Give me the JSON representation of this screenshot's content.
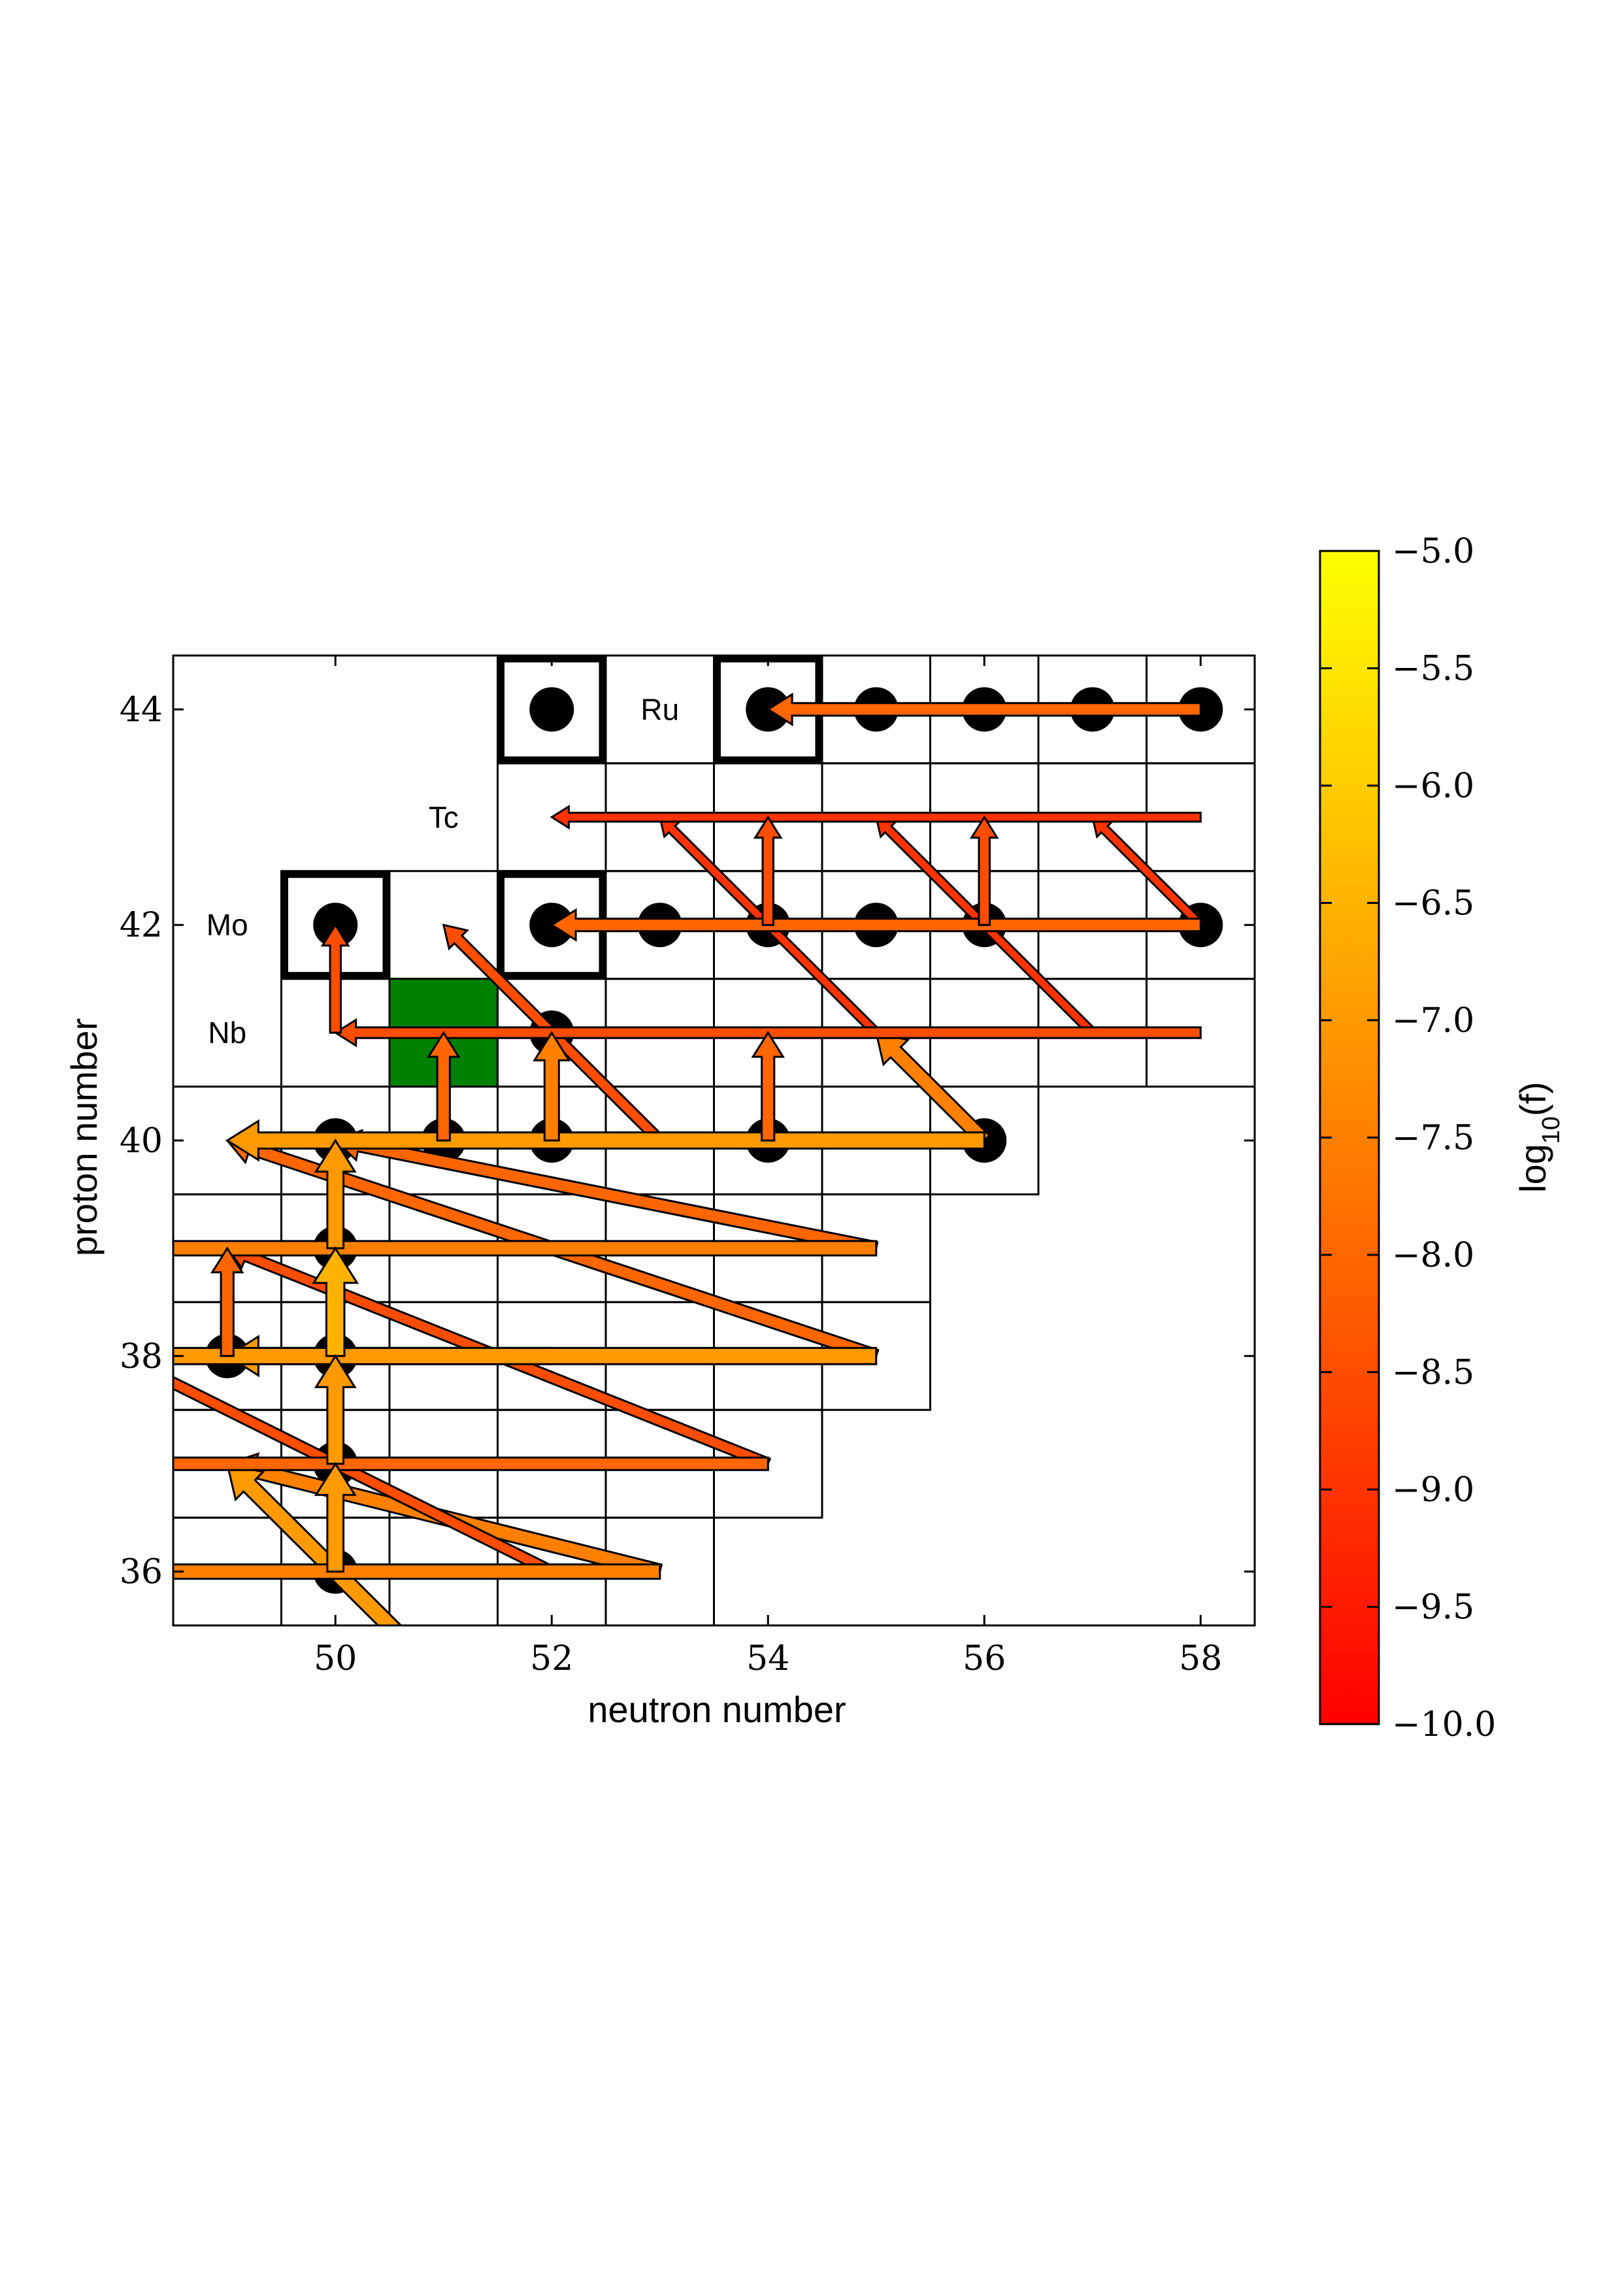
{
  "chart_data": {
    "type": "network",
    "xlabel": "neutron number",
    "ylabel": "proton number",
    "xlim": [
      48.5,
      58.5
    ],
    "ylim": [
      35.5,
      44.5
    ],
    "xticks": [
      "50",
      "52",
      "54",
      "56",
      "58"
    ],
    "yticks": [
      "36",
      "38",
      "40",
      "42",
      "44"
    ],
    "element_labels": [
      {
        "name": "Ru",
        "N": 53,
        "Z": 44
      },
      {
        "name": "Tc",
        "N": 51,
        "Z": 43
      },
      {
        "name": "Mo",
        "N": 49,
        "Z": 42
      },
      {
        "name": "Nb",
        "N": 49,
        "Z": 41
      }
    ],
    "colorbar": {
      "label": "log10(f)",
      "range": [
        -10.0,
        -5.0
      ],
      "ticks": [
        "−10.0",
        "−9.5",
        "−9.0",
        "−8.5",
        "−8.0",
        "−7.5",
        "−7.0",
        "−6.5",
        "−6.0",
        "−5.5",
        "−5.0"
      ],
      "colors": [
        "#ff0000",
        "#ff8000",
        "#ffff00"
      ]
    },
    "stable_nuclei": [
      [
        52,
        44
      ],
      [
        54,
        44
      ],
      [
        55,
        44
      ],
      [
        56,
        44
      ],
      [
        57,
        44
      ],
      [
        58,
        44
      ],
      [
        50,
        42
      ],
      [
        52,
        42
      ],
      [
        53,
        42
      ],
      [
        54,
        42
      ],
      [
        55,
        42
      ],
      [
        56,
        42
      ],
      [
        58,
        42
      ],
      [
        52,
        41
      ],
      [
        50,
        40
      ],
      [
        51,
        40
      ],
      [
        52,
        40
      ],
      [
        54,
        40
      ],
      [
        56,
        40
      ],
      [
        50,
        39
      ],
      [
        49,
        38
      ],
      [
        50,
        38
      ],
      [
        50,
        37
      ],
      [
        50,
        36
      ]
    ],
    "p_nuclei_boxes": [
      [
        52,
        44
      ],
      [
        54,
        44
      ],
      [
        50,
        42
      ],
      [
        52,
        42
      ]
    ],
    "seed_nucleus": [
      51,
      41
    ],
    "grid_rows": [
      {
        "Z": 44,
        "nmin": 52,
        "nmax": 58
      },
      {
        "Z": 43,
        "nmin": 52,
        "nmax": 58
      },
      {
        "Z": 42,
        "nmin": 50,
        "nmax": 58
      },
      {
        "Z": 41,
        "nmin": 50,
        "nmax": 58
      },
      {
        "Z": 40,
        "nmin": 48,
        "nmax": 56
      },
      {
        "Z": 39,
        "nmin": 48,
        "nmax": 55
      },
      {
        "Z": 38,
        "nmin": 48,
        "nmax": 55
      },
      {
        "Z": 37,
        "nmin": 48,
        "nmax": 54
      },
      {
        "Z": 36,
        "nmin": 48,
        "nmax": 53
      }
    ],
    "flows_neutron_capture_reverse": [
      {
        "from": [
          58,
          44
        ],
        "to": [
          54,
          44
        ],
        "log10f": -8.0
      },
      {
        "from": [
          58,
          43
        ],
        "to": [
          52,
          43
        ],
        "log10f": -9.0
      },
      {
        "from": [
          58,
          42
        ],
        "to": [
          52,
          42
        ],
        "log10f": -8.0
      },
      {
        "from": [
          58,
          41
        ],
        "to": [
          50,
          41
        ],
        "log10f": -8.5
      },
      {
        "from": [
          56,
          40
        ],
        "to": [
          49,
          40
        ],
        "log10f": -7.0
      },
      {
        "from": [
          55,
          39
        ],
        "to": [
          48,
          39
        ],
        "log10f": -7.5
      },
      {
        "from": [
          55,
          38
        ],
        "to": [
          48,
          38
        ],
        "log10f": -7.0
      },
      {
        "from": [
          54,
          37
        ],
        "to": [
          48,
          37
        ],
        "log10f": -8.0
      },
      {
        "from": [
          53,
          36
        ],
        "to": [
          48,
          36
        ],
        "log10f": -7.5
      }
    ],
    "flows_vertical": [
      {
        "from": [
          54,
          42
        ],
        "to": [
          54,
          43
        ],
        "log10f": -8.5
      },
      {
        "from": [
          56,
          42
        ],
        "to": [
          56,
          43
        ],
        "log10f": -8.5
      },
      {
        "from": [
          50,
          41
        ],
        "to": [
          50,
          42
        ],
        "log10f": -8.5
      },
      {
        "from": [
          52,
          40
        ],
        "to": [
          52,
          41
        ],
        "log10f": -7.5
      },
      {
        "from": [
          54,
          40
        ],
        "to": [
          54,
          41
        ],
        "log10f": -8.0
      },
      {
        "from": [
          51,
          40
        ],
        "to": [
          51,
          41
        ],
        "log10f": -8.0
      },
      {
        "from": [
          50,
          39
        ],
        "to": [
          50,
          40
        ],
        "log10f": -7.0
      },
      {
        "from": [
          49,
          38
        ],
        "to": [
          49,
          39
        ],
        "log10f": -8.0
      },
      {
        "from": [
          50,
          38
        ],
        "to": [
          50,
          39
        ],
        "log10f": -6.5
      },
      {
        "from": [
          50,
          37
        ],
        "to": [
          50,
          38
        ],
        "log10f": -7.0
      },
      {
        "from": [
          50,
          36
        ],
        "to": [
          50,
          37
        ],
        "log10f": -7.0
      }
    ],
    "flows_diagonal": [
      {
        "from": [
          55,
          41
        ],
        "to": [
          53,
          43
        ],
        "log10f": -9.0
      },
      {
        "from": [
          57,
          41
        ],
        "to": [
          55,
          43
        ],
        "log10f": -9.0
      },
      {
        "from": [
          58,
          42
        ],
        "to": [
          57,
          43
        ],
        "log10f": -9.0
      },
      {
        "from": [
          56,
          40
        ],
        "to": [
          55,
          41
        ],
        "log10f": -7.5
      },
      {
        "from": [
          55,
          39
        ],
        "to": [
          50,
          40
        ],
        "log10f": -8.0
      },
      {
        "from": [
          55,
          38
        ],
        "to": [
          49,
          40
        ],
        "log10f": -8.0
      },
      {
        "from": [
          54,
          37
        ],
        "to": [
          49,
          39
        ],
        "log10f": -8.5
      },
      {
        "from": [
          52,
          38
        ],
        "to": [
          49,
          38
        ],
        "log10f": -7.0
      },
      {
        "from": [
          53,
          36
        ],
        "to": [
          49,
          37
        ],
        "log10f": -7.5
      },
      {
        "from": [
          52,
          36
        ],
        "to": [
          48,
          38
        ],
        "log10f": -8.5
      },
      {
        "from": [
          51,
          35
        ],
        "to": [
          49,
          37
        ],
        "log10f": -7.0
      },
      {
        "from": [
          53,
          40
        ],
        "to": [
          51,
          42
        ],
        "log10f": -8.5
      }
    ]
  }
}
